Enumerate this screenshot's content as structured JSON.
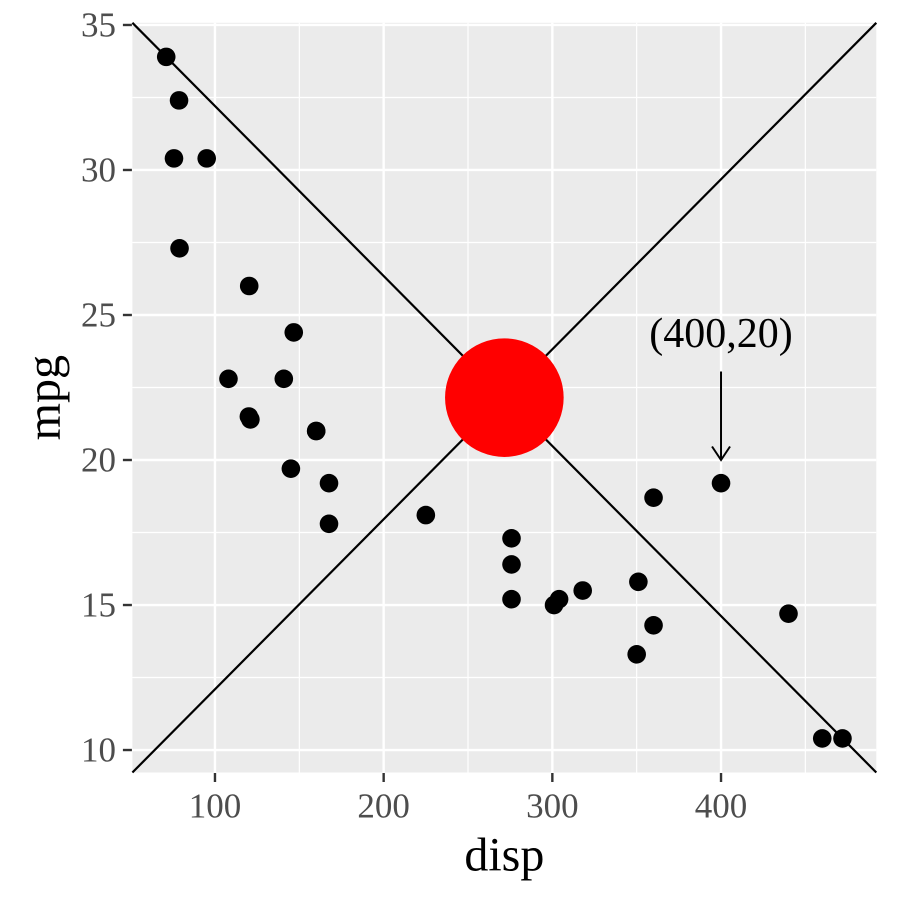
{
  "chart_data": {
    "type": "scatter",
    "title": "",
    "xlabel": "disp",
    "ylabel": "mpg",
    "xlim": [
      51.05,
      492.05
    ],
    "ylim": [
      9.225,
      35.075
    ],
    "x_major_ticks": [
      100,
      200,
      300,
      400
    ],
    "y_major_ticks": [
      10,
      15,
      20,
      25,
      30,
      35
    ],
    "x_minor_ticks": [
      150,
      250,
      350,
      450
    ],
    "y_minor_ticks": [
      12.5,
      17.5,
      22.5,
      27.5,
      32.5
    ],
    "grid": "white major and minor gridlines on gray panel",
    "legend_position": "none",
    "points": [
      [
        160,
        21.0
      ],
      [
        160,
        21.0
      ],
      [
        108,
        22.8
      ],
      [
        258,
        21.4
      ],
      [
        360,
        18.7
      ],
      [
        225,
        18.1
      ],
      [
        360,
        14.3
      ],
      [
        146.7,
        24.4
      ],
      [
        140.8,
        22.8
      ],
      [
        167.6,
        19.2
      ],
      [
        167.6,
        17.8
      ],
      [
        275.8,
        16.4
      ],
      [
        275.8,
        17.3
      ],
      [
        275.8,
        15.2
      ],
      [
        472,
        10.4
      ],
      [
        460,
        10.4
      ],
      [
        440,
        14.7
      ],
      [
        78.7,
        32.4
      ],
      [
        75.7,
        30.4
      ],
      [
        71.1,
        33.9
      ],
      [
        120.1,
        21.5
      ],
      [
        318,
        15.5
      ],
      [
        304,
        15.2
      ],
      [
        350,
        13.3
      ],
      [
        400,
        19.2
      ],
      [
        79,
        27.3
      ],
      [
        120.3,
        26.0
      ],
      [
        95.1,
        30.4
      ],
      [
        351,
        15.8
      ],
      [
        145,
        19.7
      ],
      [
        301,
        15.0
      ],
      [
        121,
        21.4
      ]
    ],
    "highlight_point": {
      "x": 271.55,
      "y": 22.15,
      "color": "#ff0000"
    },
    "reference_lines": [
      {
        "x1": 51.05,
        "y1": 35.075,
        "x2": 492.05,
        "y2": 9.225,
        "color": "#000000"
      },
      {
        "x1": 51.05,
        "y1": 9.225,
        "x2": 492.05,
        "y2": 35.075,
        "color": "#000000"
      }
    ],
    "annotation": {
      "label": "(400,20)",
      "text_x": 400,
      "text_y": 24.35,
      "arrow_from": {
        "x": 400,
        "y": 23.05
      },
      "arrow_to": {
        "x": 400,
        "y": 20.0
      }
    }
  },
  "style": {
    "panel_background": "#ebebeb",
    "gridline_color": "#ffffff",
    "point_color": "#000000",
    "highlight_color": "#ff0000",
    "tick_label_color": "#4d4d4d",
    "tick_mark_color": "#333333",
    "axis_title_color": "#000000"
  }
}
